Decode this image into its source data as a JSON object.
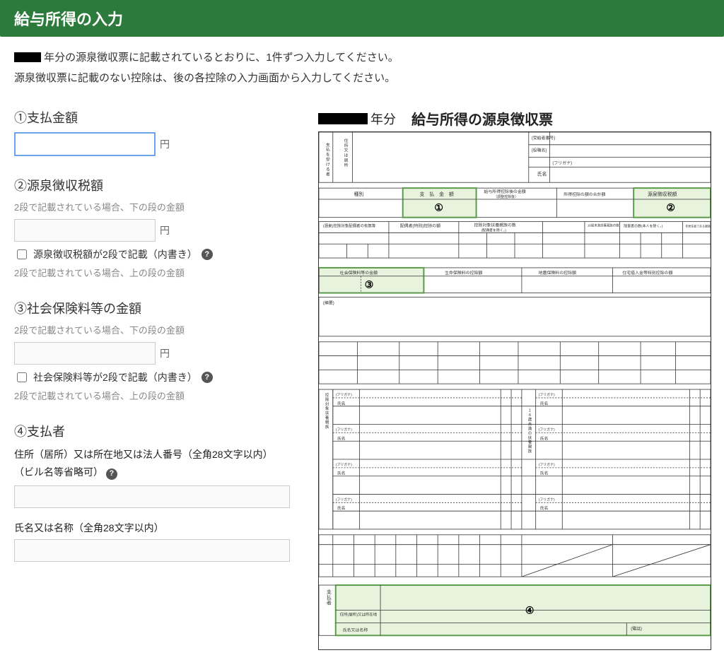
{
  "header": {
    "title": "給与所得の入力"
  },
  "intro": {
    "line1_after_box": "年分の源泉徴収票に記載されているとおりに、1件ずつ入力してください。",
    "line2": "源泉徴収票に記載のない控除は、後の各控除の入力画面から入力してください。"
  },
  "fields": {
    "f1": {
      "title": "①支払金額",
      "unit": "円"
    },
    "f2": {
      "title": "②源泉徴収税額",
      "sub": "2段で記載されている場合、下の段の金額",
      "unit": "円",
      "check_label": "源泉徴収税額が2段で記載（内書き）",
      "sub2": "2段で記載されている場合、上の段の金額"
    },
    "f3": {
      "title": "③社会保険料等の金額",
      "sub": "2段で記載されている場合、下の段の金額",
      "unit": "円",
      "check_label": "社会保険料等が2段で記載（内書き）",
      "sub2": "2段で記載されている場合、上の段の金額"
    },
    "f4": {
      "title": "④支払者",
      "addr_label_a": "住所（居所）又は所在地又は法人番号（全角28文字以内）",
      "addr_label_b": "（ビル名等省略可）",
      "name_label": "氏名又は名称（全角28文字以内）"
    }
  },
  "right": {
    "year_suffix": "年分",
    "doc_title": "給与所得の源泉徴収票",
    "markers": {
      "m1": "①",
      "m2": "②",
      "m3": "③",
      "m4": "④"
    },
    "colors": {
      "highlight_fill": "#e8f3de",
      "highlight_stroke": "#5a9b4a",
      "line": "#333333",
      "bg": "#ffffff",
      "blackbox": "#000000"
    },
    "tinytext": {
      "recip_top": "(受給者番号)",
      "recip_role": "(役職名)",
      "furigana": "(フリガナ)",
      "recip_name": "氏名",
      "col_type": "種別",
      "col_pay": "支　払　金　額",
      "col_adj_a": "給与所得控除後の金額",
      "col_adj_b": "（調整控除後）",
      "col_deduct": "所得控除の額の合計額",
      "col_tax": "源泉徴収税額",
      "social": "社会保険料等の金額",
      "life": "生命保険料の控除額",
      "quake": "地震保険料の控除額",
      "housing": "住宅借入金等特別控除の額",
      "summary": "(摘要)",
      "payer": "支払者",
      "payer_addr": "住所(居所)又は所在地",
      "payer_name": "氏名又は名称",
      "phone": "(電話)",
      "spouse_header_a": "(源泉)控除対象配偶者の有無等",
      "spouse_header_b": "配偶者(特別)控除の額",
      "dep_header_a": "控除対象扶養親族の数",
      "dep_header_b": "(配偶者を除く。)",
      "under16_a": "16歳未満扶養親族の数",
      "disabled_a": "障害者の数(本人を除く。)",
      "nonres": "非居住者である親族の数",
      "left_vert": "支払を受ける者",
      "left_vert2": "住所又は居所",
      "dep_vert": "控除対象扶養親族",
      "u16_vert": "１６歳未満の扶養親族"
    }
  }
}
